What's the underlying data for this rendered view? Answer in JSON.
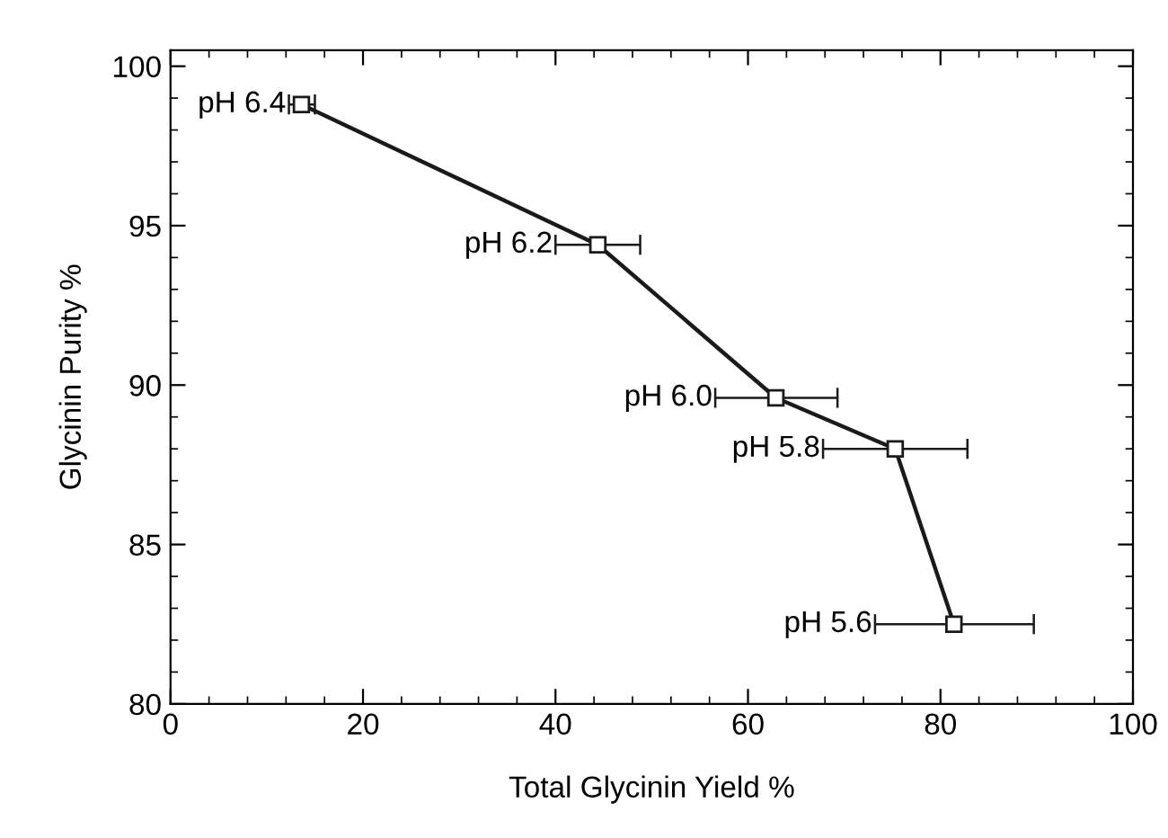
{
  "chart_data": {
    "type": "line",
    "xlabel": "Total Glycinin Yield %",
    "ylabel": "Glycinin Purity %",
    "x": [
      13.6,
      44.4,
      62.9,
      75.3,
      81.4
    ],
    "series": [
      {
        "color": "#1a1a1a",
        "values": [
          98.8,
          94.4,
          89.6,
          88.0,
          82.5
        ],
        "xerrors": [
          [
            12.3,
            15.0
          ],
          [
            40.0,
            48.8
          ],
          [
            56.6,
            69.3
          ],
          [
            67.8,
            82.8
          ],
          [
            73.2,
            89.7
          ]
        ]
      }
    ],
    "annotations": [
      "pH 6.4",
      "pH 6.2",
      "pH 6.0",
      "pH 5.8",
      "pH 5.6"
    ],
    "xlim": [
      0,
      100
    ],
    "ylim": [
      80,
      100.5
    ],
    "xticks": [
      0,
      20,
      40,
      60,
      80,
      100
    ],
    "yticks": [
      80,
      85,
      90,
      95,
      100
    ],
    "marker": "square",
    "line_style": "solid",
    "grid": false,
    "legend": false
  }
}
